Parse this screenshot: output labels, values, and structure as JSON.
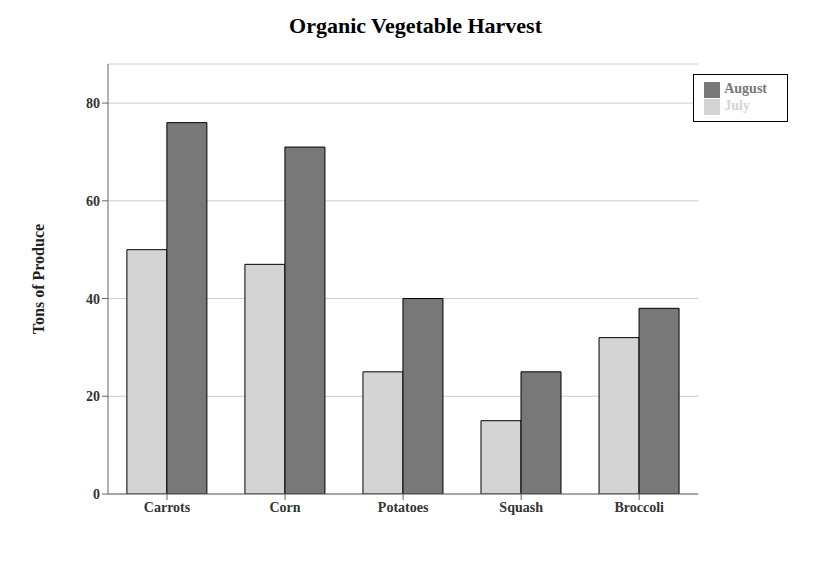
{
  "chart_data": {
    "type": "bar",
    "title": "Organic Vegetable Harvest",
    "ylabel": "Tons of Produce",
    "categories": [
      "Carrots",
      "Corn",
      "Potatoes",
      "Squash",
      "Broccoli"
    ],
    "series": [
      {
        "name": "July",
        "color": "#d4d4d4",
        "values": [
          50,
          47,
          25,
          15,
          32
        ]
      },
      {
        "name": "August",
        "color": "#787878",
        "values": [
          76,
          71,
          40,
          25,
          38
        ]
      }
    ],
    "ylim": [
      0,
      88
    ],
    "yticks": [
      0,
      20,
      40,
      60,
      80
    ],
    "grid": true,
    "legend": "upper right"
  }
}
